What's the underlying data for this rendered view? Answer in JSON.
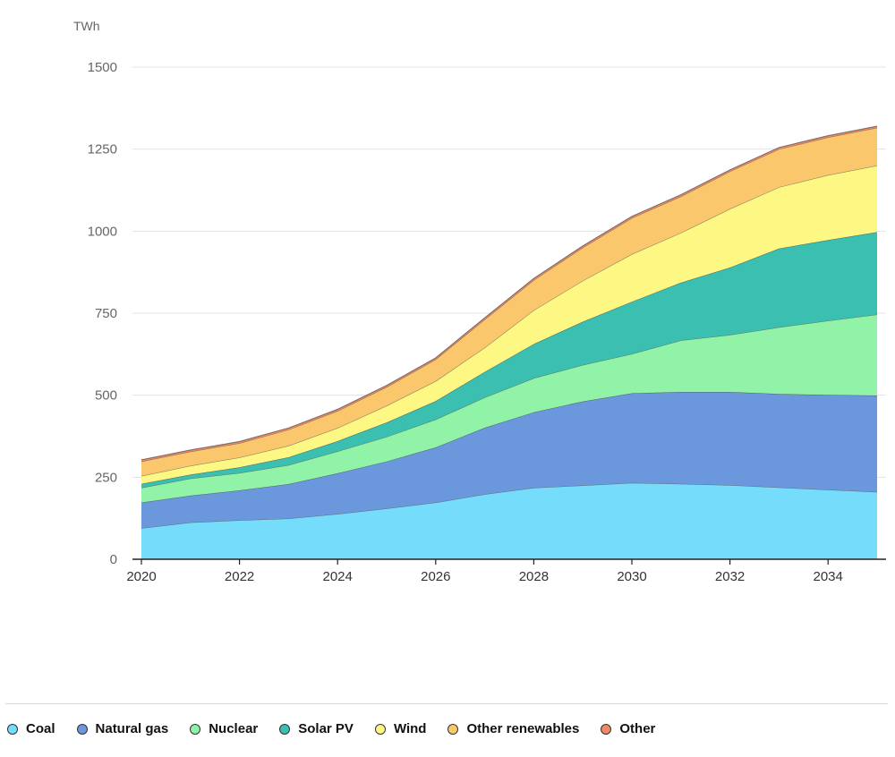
{
  "chart_data": {
    "type": "area",
    "stacked": true,
    "unit_label": "TWh",
    "x": [
      2020,
      2021,
      2022,
      2023,
      2024,
      2025,
      2026,
      2027,
      2028,
      2029,
      2030,
      2031,
      2032,
      2033,
      2034,
      2035
    ],
    "x_ticks": [
      "2020",
      "2022",
      "2024",
      "2026",
      "2028",
      "2030",
      "2032",
      "2034"
    ],
    "y_ticks": [
      "0",
      "250",
      "500",
      "750",
      "1000",
      "1250",
      "1500"
    ],
    "ylim": [
      0,
      1500
    ],
    "grid": true,
    "legend_position": "bottom",
    "series": [
      {
        "name": "Coal",
        "color": "#76dcfb",
        "values": [
          95,
          112,
          119,
          124,
          138,
          155,
          173,
          198,
          218,
          225,
          233,
          230,
          226,
          219,
          212,
          205
        ]
      },
      {
        "name": "Natural gas",
        "color": "#6b98dc",
        "values": [
          78,
          82,
          91,
          105,
          124,
          143,
          168,
          203,
          230,
          256,
          273,
          280,
          284,
          285,
          289,
          294
        ]
      },
      {
        "name": "Nuclear",
        "color": "#90f3a7",
        "values": [
          45,
          52,
          53,
          58,
          67,
          75,
          85,
          92,
          104,
          111,
          120,
          157,
          174,
          203,
          226,
          247
        ]
      },
      {
        "name": "Solar PV",
        "color": "#3abfb0",
        "values": [
          12,
          12,
          17,
          24,
          31,
          44,
          56,
          78,
          104,
          132,
          159,
          176,
          205,
          240,
          246,
          251
        ]
      },
      {
        "name": "Wind",
        "color": "#fdf784",
        "values": [
          24,
          27,
          30,
          35,
          40,
          51,
          61,
          74,
          103,
          125,
          145,
          152,
          179,
          187,
          198,
          203
        ]
      },
      {
        "name": "Other renewables",
        "color": "#fbc76d",
        "values": [
          44,
          43,
          44,
          49,
          52,
          57,
          66,
          86,
          92,
          101,
          110,
          111,
          114,
          116,
          115,
          115
        ]
      },
      {
        "name": "Other",
        "color": "#ef8a66",
        "values": [
          5,
          5,
          5,
          5,
          5,
          5,
          5,
          5,
          5,
          5,
          5,
          5,
          5,
          5,
          5,
          5
        ]
      }
    ]
  }
}
